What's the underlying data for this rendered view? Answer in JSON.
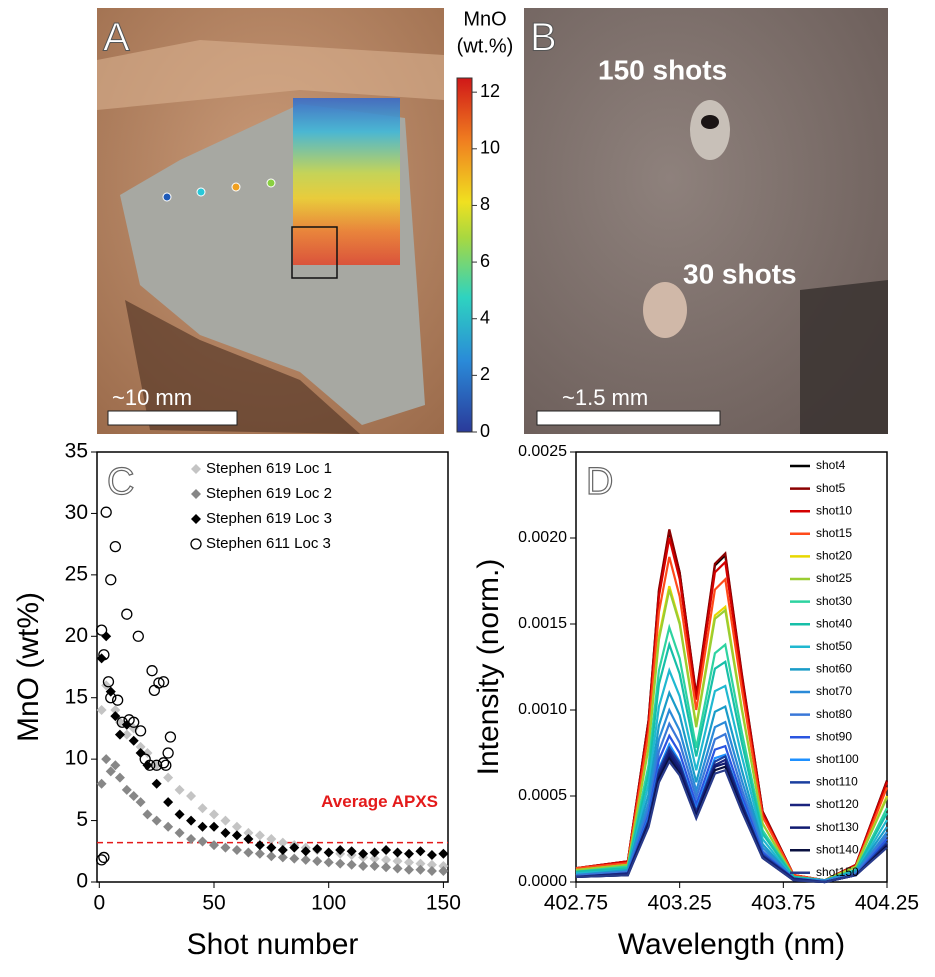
{
  "panels": {
    "a": {
      "label": "A",
      "scale_bar": "~10 mm",
      "colorbar_title": [
        "MnO",
        "(wt.%)"
      ],
      "colorbar_lim": [
        0,
        12.5
      ],
      "colorbar_ticks": [
        0,
        2,
        4,
        6,
        8,
        10,
        12
      ]
    },
    "b": {
      "label": "B",
      "annotations": [
        "150 shots",
        "30 shots"
      ],
      "scale_bar": "~1.5 mm"
    }
  },
  "chart_data": [
    {
      "type": "scatter",
      "label": "C",
      "xlabel": "Shot number",
      "ylabel": "MnO (wt%)",
      "xlim": [
        -1,
        152
      ],
      "ylim": [
        0,
        35
      ],
      "xticks": [
        0,
        50,
        100,
        150
      ],
      "yticks": [
        0,
        5,
        10,
        15,
        20,
        25,
        30,
        35
      ],
      "legend": "top-center",
      "reference_line": {
        "value": 3.2,
        "label": "Average APXS",
        "color": "#e41a1a"
      },
      "series": [
        {
          "name": "Stephen 619 Loc 1",
          "marker": "diamond",
          "color": "#c4c4c4",
          "x": [
            1,
            3,
            5,
            7,
            9,
            12,
            15,
            18,
            21,
            25,
            30,
            35,
            40,
            45,
            50,
            55,
            60,
            65,
            70,
            75,
            80,
            85,
            90,
            95,
            100,
            105,
            110,
            115,
            120,
            125,
            130,
            135,
            140,
            145,
            150
          ],
          "values": [
            14,
            16,
            15.5,
            14,
            13,
            12,
            12.5,
            11,
            10.5,
            9.5,
            8.5,
            7.5,
            7,
            6,
            5.5,
            5,
            4.5,
            4,
            3.8,
            3.5,
            3.2,
            3,
            2.8,
            2.6,
            2.4,
            2.3,
            2.2,
            2,
            1.9,
            1.8,
            1.7,
            1.6,
            1.5,
            1.4,
            1.3
          ]
        },
        {
          "name": "Stephen 619 Loc 2",
          "marker": "diamond",
          "color": "#878787",
          "x": [
            1,
            3,
            5,
            7,
            9,
            12,
            15,
            18,
            21,
            25,
            30,
            35,
            40,
            45,
            50,
            55,
            60,
            65,
            70,
            75,
            80,
            85,
            90,
            95,
            100,
            105,
            110,
            115,
            120,
            125,
            130,
            135,
            140,
            145,
            150
          ],
          "values": [
            8,
            10,
            9,
            9.5,
            8.5,
            7.5,
            7,
            6.5,
            5.5,
            5,
            4.5,
            4,
            3.5,
            3.3,
            3,
            2.8,
            2.6,
            2.4,
            2.3,
            2.1,
            2,
            1.9,
            1.8,
            1.7,
            1.6,
            1.5,
            1.4,
            1.3,
            1.3,
            1.2,
            1.1,
            1,
            1,
            0.9,
            0.9
          ]
        },
        {
          "name": "Stephen 619 Loc 3",
          "marker": "diamond",
          "color": "#000000",
          "x": [
            1,
            3,
            5,
            7,
            9,
            12,
            15,
            18,
            21,
            25,
            30,
            35,
            40,
            45,
            50,
            55,
            60,
            65,
            70,
            75,
            80,
            85,
            90,
            95,
            100,
            105,
            110,
            115,
            120,
            125,
            130,
            135,
            140,
            145,
            150
          ],
          "values": [
            18.2,
            20,
            15.5,
            13.5,
            12,
            12.8,
            11.5,
            10.5,
            9.5,
            8,
            6.5,
            5.5,
            5,
            4.5,
            4.5,
            4,
            3.8,
            3.5,
            3,
            2.8,
            2.6,
            2.8,
            2.5,
            2.7,
            2.4,
            2.6,
            2.5,
            2.3,
            2.4,
            2.6,
            2.4,
            2.3,
            2.5,
            2.2,
            2.3
          ]
        },
        {
          "name": "Stephen 611 Loc 3",
          "marker": "circle-open",
          "color": "#000000",
          "x": [
            1,
            1,
            2,
            2,
            3,
            4,
            5,
            5,
            7,
            8,
            10,
            12,
            13,
            15,
            17,
            18,
            20,
            22,
            23,
            24,
            25,
            26,
            28,
            28,
            29,
            30,
            31
          ],
          "values": [
            1.8,
            20.5,
            18.5,
            2,
            30.1,
            16.3,
            24.6,
            15,
            27.3,
            14.8,
            13,
            21.8,
            13.2,
            13,
            20,
            12.3,
            10,
            9.5,
            17.2,
            15.6,
            9.5,
            16.2,
            16.3,
            9.7,
            9.5,
            10.5,
            11.8
          ]
        }
      ]
    },
    {
      "type": "line",
      "label": "D",
      "xlabel": "Wavelength (nm)",
      "ylabel": "Intensity (norm.)",
      "x": [
        402.75,
        403.0,
        403.1,
        403.15,
        403.2,
        403.25,
        403.33,
        403.42,
        403.47,
        403.55,
        403.65,
        403.8,
        403.95,
        404.1,
        404.25
      ],
      "xlim": [
        402.75,
        404.25
      ],
      "ylim": [
        0,
        0.0025
      ],
      "xticks": [
        402.75,
        403.25,
        403.75,
        404.25
      ],
      "yticks": [
        {
          "value": 0,
          "label": "0.0000"
        },
        {
          "value": 0.0005,
          "label": "0.0005"
        },
        {
          "value": 0.001,
          "label": "0.0010"
        },
        {
          "value": 0.0015,
          "label": "0.0015"
        },
        {
          "value": 0.002,
          "label": "0.0020"
        },
        {
          "value": 0.0025,
          "label": "0.0025"
        }
      ],
      "legend": "top-right",
      "series": [
        {
          "name": "shot4",
          "color": "#000000",
          "values": [
            8e-05,
            0.00012,
            0.00094,
            0.00169,
            0.00204,
            0.0018,
            0.00108,
            0.00184,
            0.0019,
            0.0012,
            0.00041,
            4e-05,
            1e-05,
            0.0001,
            0.00059
          ]
        },
        {
          "name": "shot5",
          "color": "#8b0000",
          "values": [
            8e-05,
            0.00012,
            0.00094,
            0.0017,
            0.00205,
            0.0018,
            0.00109,
            0.00185,
            0.00191,
            0.00121,
            0.00041,
            4e-05,
            1e-05,
            0.0001,
            0.00059
          ]
        },
        {
          "name": "shot10",
          "color": "#d40000",
          "values": [
            8e-05,
            0.00012,
            0.00092,
            0.00166,
            0.002,
            0.00176,
            0.00106,
            0.0018,
            0.00186,
            0.00118,
            0.0004,
            4e-05,
            1e-05,
            0.0001,
            0.00058
          ]
        },
        {
          "name": "shot15",
          "color": "#ff4a1a",
          "values": [
            8e-05,
            0.00011,
            0.00087,
            0.00157,
            0.00189,
            0.00166,
            0.001,
            0.0017,
            0.00176,
            0.00112,
            0.00038,
            4e-05,
            1e-05,
            9e-05,
            0.00055
          ]
        },
        {
          "name": "shot20",
          "color": "#e8d800",
          "values": [
            7e-05,
            0.0001,
            0.00079,
            0.00143,
            0.00172,
            0.00151,
            0.00091,
            0.00155,
            0.0016,
            0.00101,
            0.00034,
            3e-05,
            1e-05,
            9e-05,
            0.0005
          ]
        },
        {
          "name": "shot25",
          "color": "#9acd32",
          "values": [
            7e-05,
            0.0001,
            0.00078,
            0.00141,
            0.0017,
            0.0015,
            0.0009,
            0.00153,
            0.00158,
            0.001,
            0.00034,
            3e-05,
            1e-05,
            9e-05,
            0.00049
          ]
        },
        {
          "name": "shot30",
          "color": "#2ed3a0",
          "values": [
            6e-05,
            9e-05,
            0.00068,
            0.00123,
            0.00148,
            0.0013,
            0.00078,
            0.00133,
            0.00138,
            0.00087,
            0.0003,
            3e-05,
            1e-05,
            7e-05,
            0.00043
          ]
        },
        {
          "name": "shot40",
          "color": "#17bfa8",
          "values": [
            6e-05,
            8e-05,
            0.00063,
            0.00115,
            0.00138,
            0.00121,
            0.00073,
            0.00124,
            0.00128,
            0.00081,
            0.00028,
            3e-05,
            1e-05,
            7e-05,
            0.0004
          ]
        },
        {
          "name": "shot50",
          "color": "#20b8d0",
          "values": [
            5e-05,
            7e-05,
            0.00057,
            0.00102,
            0.00123,
            0.00108,
            0.00065,
            0.00111,
            0.00114,
            0.00073,
            0.00025,
            2e-05,
            1e-05,
            6e-05,
            0.00036
          ]
        },
        {
          "name": "shot60",
          "color": "#1a9cc8",
          "values": [
            4e-05,
            7e-05,
            0.00051,
            0.00091,
            0.0011,
            0.00097,
            0.00058,
            0.00099,
            0.00102,
            0.00065,
            0.00022,
            2e-05,
            1e-05,
            6e-05,
            0.00032
          ]
        },
        {
          "name": "shot70",
          "color": "#2a8ad8",
          "values": [
            4e-05,
            6e-05,
            0.00046,
            0.00083,
            0.001,
            0.00088,
            0.00053,
            0.0009,
            0.00093,
            0.00059,
            0.0002,
            2e-05,
            1e-05,
            5e-05,
            0.00029
          ]
        },
        {
          "name": "shot80",
          "color": "#3a78d8",
          "values": [
            4e-05,
            6e-05,
            0.00042,
            0.00076,
            0.00092,
            0.00081,
            0.00049,
            0.00083,
            0.00086,
            0.00054,
            0.00018,
            2e-05,
            0,
            5e-05,
            0.00027
          ]
        },
        {
          "name": "shot90",
          "color": "#2a55e0",
          "values": [
            3e-05,
            5e-05,
            0.00039,
            0.00071,
            0.00085,
            0.00075,
            0.00045,
            0.00077,
            0.00079,
            0.0005,
            0.00017,
            2e-05,
            0,
            4e-05,
            0.00025
          ]
        },
        {
          "name": "shot100",
          "color": "#1e90ff",
          "values": [
            3e-05,
            5e-05,
            0.00037,
            0.00066,
            0.0008,
            0.0007,
            0.00042,
            0.00072,
            0.00074,
            0.00047,
            0.00016,
            2e-05,
            0,
            4e-05,
            0.00023
          ]
        },
        {
          "name": "shot110",
          "color": "#1a3f9f",
          "values": [
            3e-05,
            5e-05,
            0.00036,
            0.00065,
            0.00078,
            0.00069,
            0.00041,
            0.0007,
            0.00073,
            0.00046,
            0.00016,
            2e-05,
            0,
            4e-05,
            0.00023
          ]
        },
        {
          "name": "shot120",
          "color": "#1a237e",
          "values": [
            3e-05,
            5e-05,
            0.00035,
            0.00063,
            0.00076,
            0.00067,
            0.0004,
            0.00068,
            0.00071,
            0.00045,
            0.00015,
            2e-05,
            0,
            4e-05,
            0.00022
          ]
        },
        {
          "name": "shot130",
          "color": "#101a70",
          "values": [
            3e-05,
            4e-05,
            0.00034,
            0.00061,
            0.00074,
            0.00065,
            0.00039,
            0.00067,
            0.00069,
            0.00044,
            0.00015,
            1e-05,
            0,
            4e-05,
            0.00021
          ]
        },
        {
          "name": "shot140",
          "color": "#0a1040",
          "values": [
            3e-05,
            4e-05,
            0.00033,
            0.0006,
            0.00072,
            0.00063,
            0.00038,
            0.00065,
            0.00067,
            0.00042,
            0.00014,
            1e-05,
            0,
            4e-05,
            0.00021
          ]
        },
        {
          "name": "shot150",
          "color": "#283a8a",
          "values": [
            3e-05,
            4e-05,
            0.00032,
            0.00058,
            0.0007,
            0.00062,
            0.00037,
            0.00063,
            0.00065,
            0.00041,
            0.00014,
            1e-05,
            0,
            4e-05,
            0.0002
          ]
        }
      ]
    }
  ]
}
